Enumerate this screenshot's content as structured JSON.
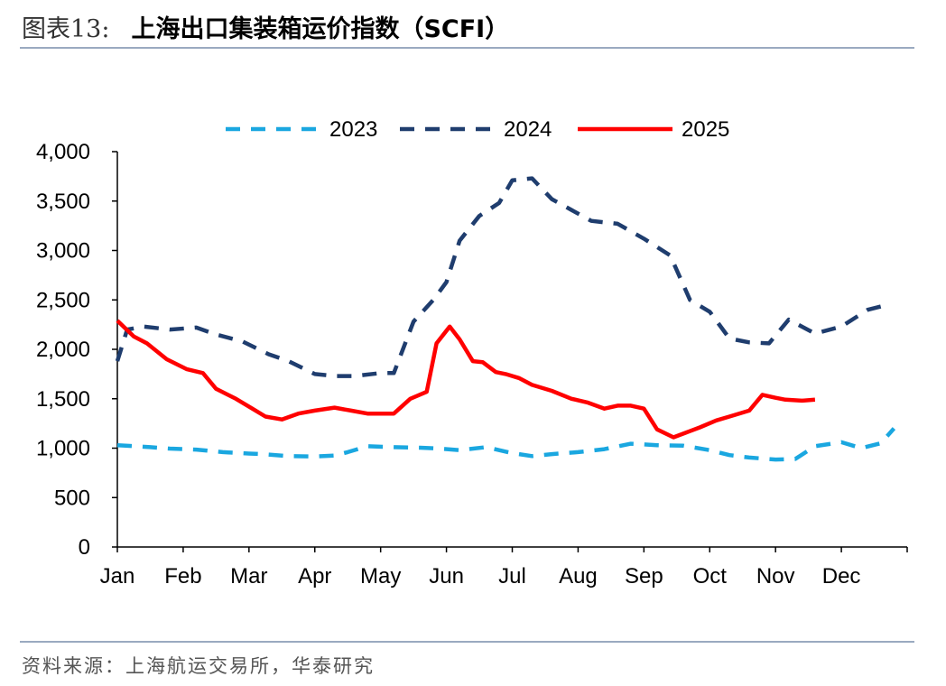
{
  "header": {
    "figure_label": "图表13:",
    "figure_title": "上海出口集装箱运价指数（SCFI）"
  },
  "footer": {
    "source": "资料来源：上海航运交易所，华泰研究"
  },
  "colors": {
    "series_2023": "#1aa7e0",
    "series_2024": "#1f3d6e",
    "series_2025": "#ff0000",
    "axis": "#000000",
    "rule": "#9aaac0"
  },
  "chart_data": {
    "type": "line",
    "title": "",
    "xlabel": "",
    "ylabel": "",
    "x_tick_labels": [
      "Jan",
      "Feb",
      "Mar",
      "Apr",
      "May",
      "Jun",
      "Jul",
      "Aug",
      "Sep",
      "Oct",
      "Nov",
      "Dec"
    ],
    "y_tick_labels": [
      "0",
      "500",
      "1,000",
      "1,500",
      "2,000",
      "2,500",
      "3,000",
      "3,500",
      "4,000"
    ],
    "ylim": [
      0,
      4000
    ],
    "xlim": [
      0,
      12
    ],
    "grid": false,
    "legend_position": "top",
    "series": [
      {
        "name": "2023",
        "style": "dashed",
        "x": [
          0.0,
          0.5,
          0.8,
          1.2,
          1.6,
          2.0,
          2.2,
          2.6,
          3.0,
          3.3,
          3.5,
          3.8,
          4.2,
          4.6,
          4.9,
          5.2,
          5.6,
          6.0,
          6.3,
          6.6,
          7.0,
          7.4,
          7.8,
          8.2,
          8.6,
          9.0,
          9.3,
          9.6,
          10.0,
          10.3,
          10.6,
          11.0,
          11.3,
          11.6,
          11.8
        ],
        "values": [
          1030,
          1010,
          995,
          985,
          960,
          945,
          940,
          920,
          915,
          925,
          960,
          1020,
          1010,
          1005,
          995,
          980,
          1010,
          950,
          920,
          940,
          960,
          990,
          1045,
          1030,
          1025,
          980,
          930,
          905,
          885,
          890,
          1020,
          1060,
          1000,
          1050,
          1200
        ]
      },
      {
        "name": "2024",
        "style": "dashed",
        "x": [
          0.0,
          0.15,
          0.4,
          0.8,
          1.2,
          1.5,
          1.9,
          2.3,
          2.6,
          3.0,
          3.3,
          3.6,
          4.0,
          4.2,
          4.5,
          4.8,
          5.0,
          5.2,
          5.5,
          5.8,
          6.0,
          6.3,
          6.6,
          6.9,
          7.2,
          7.6,
          8.0,
          8.4,
          8.7,
          9.0,
          9.3,
          9.6,
          9.9,
          10.2,
          10.6,
          11.0,
          11.4,
          11.7
        ],
        "values": [
          1880,
          2200,
          2230,
          2200,
          2220,
          2150,
          2080,
          1950,
          1880,
          1750,
          1730,
          1730,
          1760,
          1760,
          2280,
          2500,
          2680,
          3100,
          3350,
          3480,
          3710,
          3730,
          3520,
          3410,
          3300,
          3270,
          3120,
          2950,
          2500,
          2380,
          2110,
          2070,
          2060,
          2300,
          2160,
          2230,
          2400,
          2450
        ]
      },
      {
        "name": "2025",
        "style": "solid",
        "x": [
          0.0,
          0.25,
          0.45,
          0.75,
          1.05,
          1.3,
          1.5,
          1.8,
          2.05,
          2.25,
          2.5,
          2.75,
          3.0,
          3.3,
          3.55,
          3.8,
          4.05,
          4.2,
          4.45,
          4.7,
          4.85,
          5.05,
          5.2,
          5.4,
          5.55,
          5.75,
          5.9,
          6.1,
          6.3,
          6.6,
          6.9,
          7.15,
          7.4,
          7.6,
          7.8,
          8.0,
          8.2,
          8.45,
          8.65,
          8.85,
          9.1,
          9.3,
          9.6,
          9.8,
          10.0,
          10.15,
          10.4,
          10.6
        ],
        "values": [
          2290,
          2130,
          2060,
          1900,
          1800,
          1760,
          1600,
          1500,
          1400,
          1320,
          1290,
          1350,
          1380,
          1410,
          1380,
          1350,
          1350,
          1350,
          1500,
          1570,
          2060,
          2230,
          2100,
          1880,
          1870,
          1770,
          1750,
          1710,
          1640,
          1580,
          1500,
          1460,
          1400,
          1430,
          1430,
          1400,
          1190,
          1110,
          1160,
          1210,
          1280,
          1320,
          1380,
          1540,
          1510,
          1490,
          1480,
          1490
        ]
      }
    ]
  }
}
